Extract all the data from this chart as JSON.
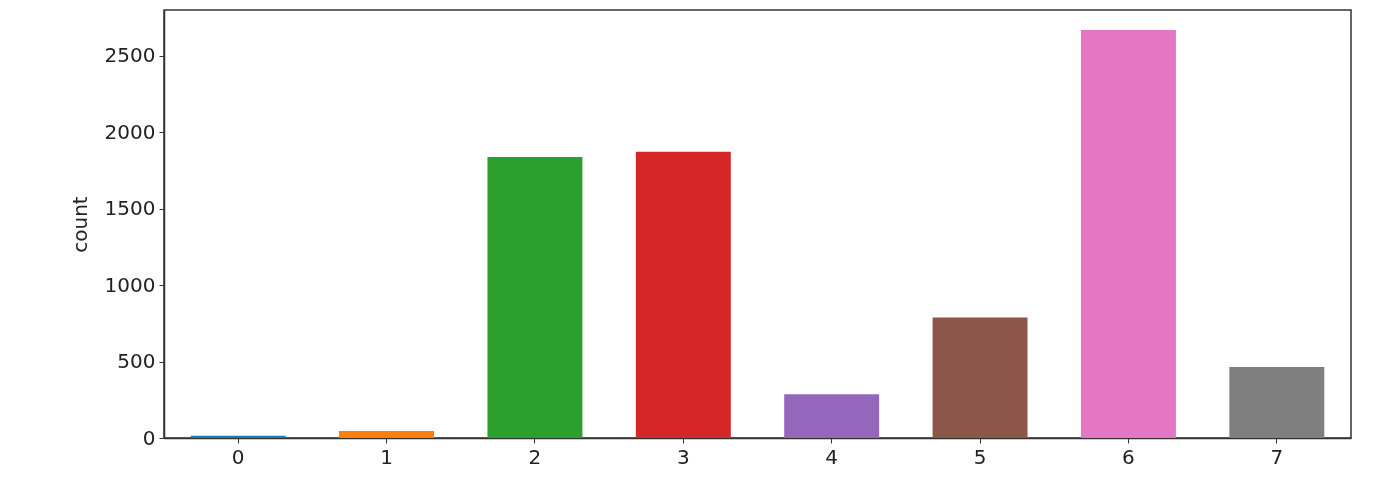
{
  "chart_data": {
    "type": "bar",
    "ylabel": "count",
    "categories": [
      "0",
      "1",
      "2",
      "3",
      "4",
      "5",
      "6",
      "7"
    ],
    "values": [
      15,
      45,
      1838,
      1873,
      286,
      788,
      2669,
      464
    ],
    "colors": [
      "#1f77b4",
      "#ff7f0e",
      "#2ca02c",
      "#d62728",
      "#9467bd",
      "#8c564b",
      "#e377c2",
      "#7f7f7f"
    ],
    "ylim": [
      0,
      2800
    ],
    "yticks": [
      0,
      500,
      1000,
      1500,
      2000,
      2500
    ],
    "grid": false
  }
}
